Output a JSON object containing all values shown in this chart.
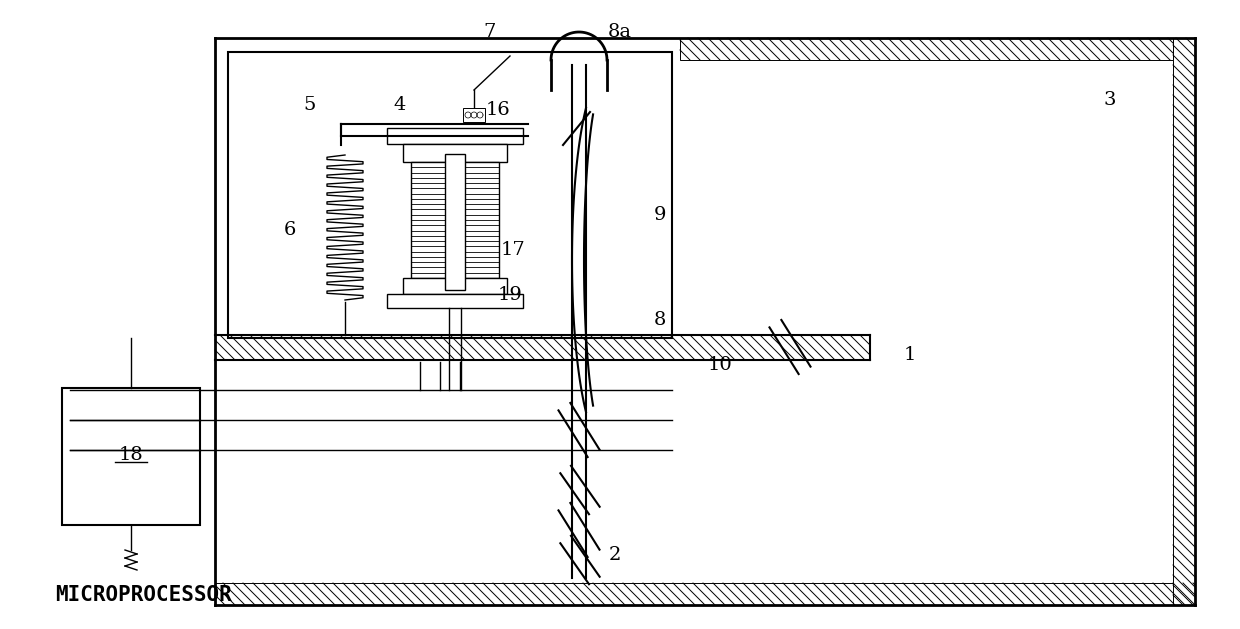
{
  "bg_color": "#ffffff",
  "line_color": "#000000",
  "figsize": [
    12.4,
    6.29
  ],
  "dpi": 100
}
